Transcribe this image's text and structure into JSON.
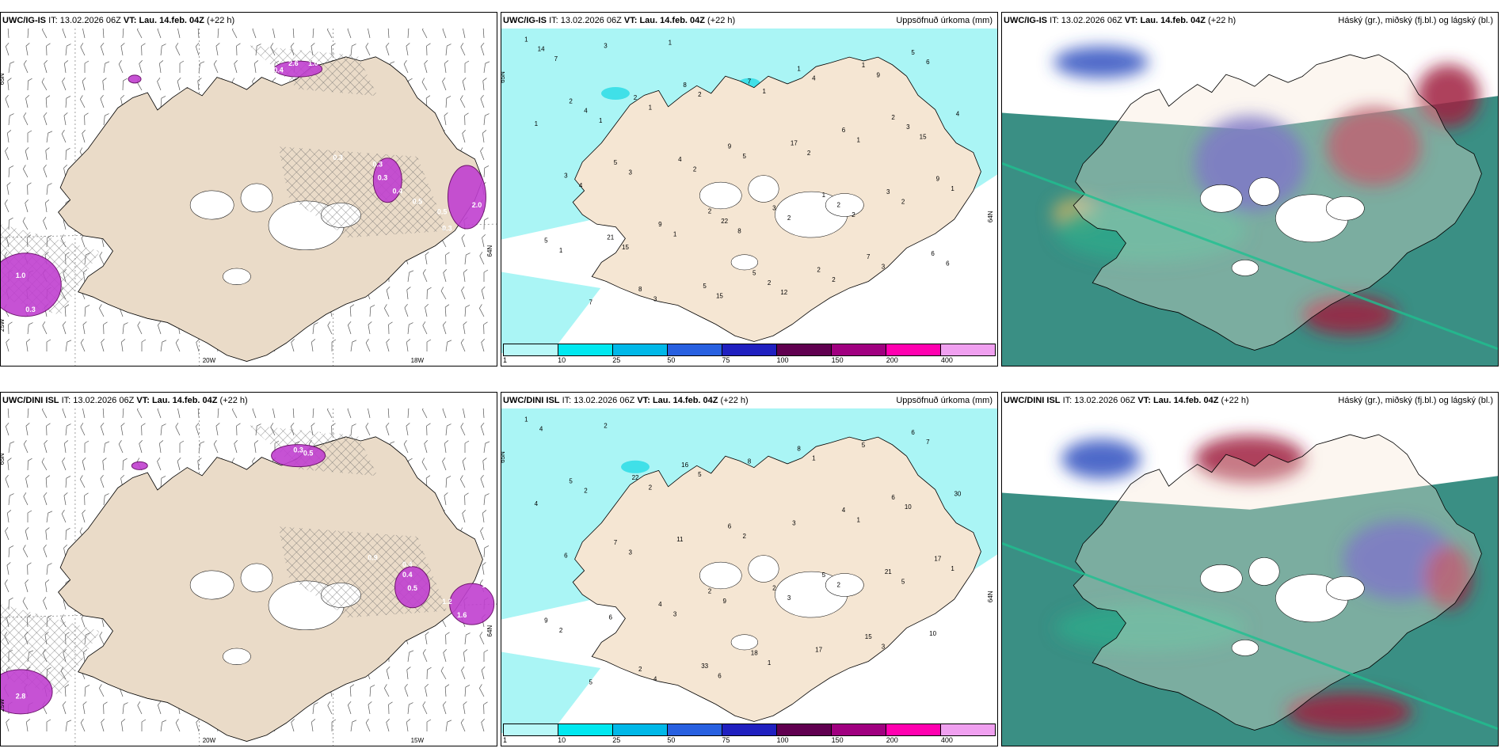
{
  "panels": [
    {
      "model": "UWC/IG-IS",
      "it_label": "IT:",
      "it": "13.02.2026 06Z",
      "vt_label": "VT:",
      "vt": "Lau. 14.feb. 04Z",
      "lead": "(+22 h)",
      "title": "",
      "type": "wind",
      "labels": [
        "2.6",
        "1.0",
        "0.4",
        "0.3",
        "0.3",
        "0.3",
        "0.4",
        "0.5",
        "0.5",
        "2.0",
        "0.3",
        "1.0",
        "0.3"
      ],
      "axes": [
        "65N",
        "20W",
        "18W",
        "25W",
        "64N"
      ]
    },
    {
      "model": "UWC/IG-IS",
      "it_label": "IT:",
      "it": "13.02.2026 06Z",
      "vt_label": "VT:",
      "vt": "Lau. 14.feb. 04Z",
      "lead": "(+22 h)",
      "title": "Uppsöfnuð úrkoma (mm)",
      "type": "precip",
      "labels": [
        "1",
        "2",
        "2",
        "8",
        "1",
        "2",
        "5",
        "9",
        "8",
        "7",
        "5",
        "1",
        "5",
        "9",
        "5",
        "9",
        "6",
        "7",
        "3",
        "4",
        "5",
        "3",
        "2",
        "2",
        "3",
        "7",
        "6",
        "4",
        "1",
        "21",
        "17",
        "14",
        "22",
        "3",
        "3",
        "2",
        "4",
        "2",
        "1",
        "2",
        "3",
        "3",
        "4",
        "1",
        "5",
        "6",
        "1",
        "1",
        "3",
        "2",
        "1",
        "15",
        "2",
        "1",
        "2",
        "4",
        "1",
        "6",
        "2",
        "9",
        "15",
        "2",
        "7",
        "8",
        "15",
        "1",
        "2",
        "1",
        "12"
      ],
      "axes": [
        "65N",
        "64N"
      ],
      "legend": [
        "1",
        "10",
        "25",
        "50",
        "75",
        "100",
        "150",
        "200",
        "400"
      ]
    },
    {
      "model": "UWC/IG-IS",
      "it_label": "IT:",
      "it": "13.02.2026 06Z",
      "vt_label": "VT:",
      "vt": "Lau. 14.feb. 04Z",
      "lead": "(+22 h)",
      "title": "Háský (gr.), miðský (fj.bl.) og lágský (bl.)",
      "type": "cloud"
    },
    {
      "model": "UWC/DINI ISL",
      "it_label": "IT:",
      "it": "13.02.2026 06Z",
      "vt_label": "VT:",
      "vt": "Lau. 14.feb. 04Z",
      "lead": "(+22 h)",
      "title": "",
      "type": "wind",
      "labels": [
        "0.7",
        "0.3",
        "0.5",
        "0.4",
        "0.9",
        "0.4",
        "0.5",
        "1.2",
        "1.6",
        "1.0",
        "2.8"
      ],
      "axes": [
        "65N",
        "20W",
        "15W",
        "25W",
        "64N"
      ]
    },
    {
      "model": "UWC/DINI ISL",
      "it_label": "IT:",
      "it": "13.02.2026 06Z",
      "vt_label": "VT:",
      "vt": "Lau. 14.feb. 04Z",
      "lead": "(+22 h)",
      "title": "Uppsöfnuð úrkoma (mm)",
      "type": "precip",
      "labels": [
        "1",
        "2",
        "6",
        "2",
        "5",
        "5",
        "18",
        "17",
        "16",
        "15",
        "7",
        "8",
        "9",
        "6",
        "6",
        "4",
        "4",
        "5",
        "2",
        "30",
        "33",
        "21",
        "22",
        "17",
        "6",
        "8",
        "10",
        "11",
        "5",
        "6",
        "3",
        "4",
        "9",
        "10",
        "4",
        "2",
        "2",
        "1",
        "1",
        "5",
        "3",
        "3",
        "1",
        "2",
        "2",
        "7",
        "3",
        "1",
        "2",
        "3",
        "4",
        "6",
        "5",
        "2"
      ],
      "axes": [
        "65N",
        "64N"
      ],
      "legend": [
        "1",
        "10",
        "25",
        "50",
        "75",
        "100",
        "150",
        "200",
        "400"
      ]
    },
    {
      "model": "UWC/DINI ISL",
      "it_label": "IT:",
      "it": "13.02.2026 06Z",
      "vt_label": "VT:",
      "vt": "Lau. 14.feb. 04Z",
      "lead": "(+22 h)",
      "title": "Háský (gr.), miðský (fj.bl.) og lágský (bl.)",
      "type": "cloud"
    }
  ],
  "colors": {
    "land": "#f5e6d3",
    "land_wind": "#eadbc8",
    "precip_light": "#aaf5f5",
    "precip_mid": "#40e0e8",
    "precip_legend": [
      "#b8f8f8",
      "#00e8f0",
      "#00b8e8",
      "#2860e0",
      "#2020c0",
      "#600050",
      "#a00080",
      "#ff00b0",
      "#f0a0f0"
    ],
    "purple": "#c040d0",
    "cloud_green": "#2a8a7a",
    "cloud_blue": "#4040c0",
    "cloud_red": "#a02040"
  }
}
